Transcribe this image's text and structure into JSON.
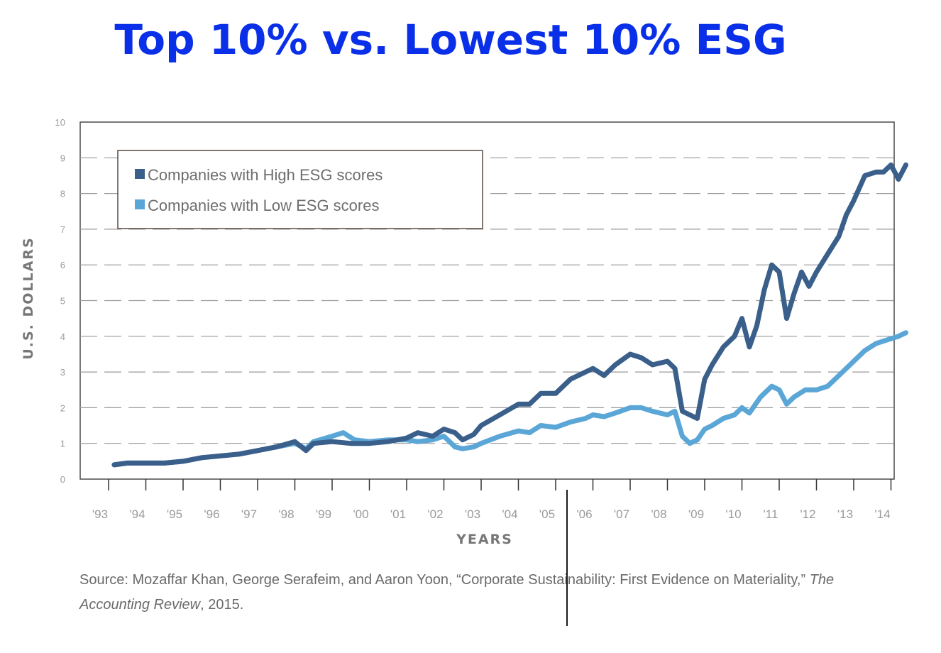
{
  "title": "Top 10% vs. Lowest 10% ESG",
  "source": {
    "prefix": "Source: Mozaffar Khan, George Serafeim, and Aaron Yoon, “Corporate Sustainability: First Evidence on Materiality,” ",
    "journal": "The Accounting Review",
    "suffix": ", 2015."
  },
  "colors": {
    "high": "#3a5f8a",
    "low": "#5aa6d6",
    "title": "#0a2fe8"
  },
  "chart_data": {
    "type": "line",
    "title": "",
    "xlabel": "YEARS",
    "ylabel": "U.S. DOLLARS",
    "xlim": [
      1993,
      2014.45
    ],
    "ylim": [
      0,
      10
    ],
    "yticks": [
      "0",
      "1",
      "2",
      "3",
      "4",
      "5",
      "6",
      "7",
      "8",
      "9",
      "10"
    ],
    "xticks": [
      "'93",
      "'94",
      "'95",
      "'96",
      "'97",
      "'98",
      "'99",
      "'00",
      "'01",
      "'02",
      "'03",
      "'04",
      "'05",
      "'06",
      "'07",
      "'08",
      "'09",
      "'10",
      "'11",
      "'12",
      "'13",
      "'14"
    ],
    "grid": "dashed horizontal",
    "legend_position": "top-left",
    "series": [
      {
        "name": "Companies with High ESG scores",
        "x": [
          1993.15,
          1993.5,
          1994.0,
          1994.5,
          1995.0,
          1995.5,
          1996.0,
          1996.5,
          1997.0,
          1997.5,
          1998.0,
          1998.3,
          1998.5,
          1999.0,
          1999.5,
          2000.0,
          2000.5,
          2001.0,
          2001.3,
          2001.7,
          2002.0,
          2002.3,
          2002.5,
          2002.8,
          2003.0,
          2003.5,
          2004.0,
          2004.3,
          2004.6,
          2005.0,
          2005.4,
          2005.8,
          2006.0,
          2006.3,
          2006.6,
          2007.0,
          2007.3,
          2007.6,
          2008.0,
          2008.2,
          2008.4,
          2008.6,
          2008.8,
          2009.0,
          2009.2,
          2009.5,
          2009.8,
          2010.0,
          2010.2,
          2010.4,
          2010.6,
          2010.8,
          2011.0,
          2011.2,
          2011.4,
          2011.6,
          2011.8,
          2012.0,
          2012.3,
          2012.6,
          2012.8,
          2013.0,
          2013.3,
          2013.6,
          2013.8,
          2014.0,
          2014.2,
          2014.4
        ],
        "values": [
          0.4,
          0.45,
          0.45,
          0.45,
          0.5,
          0.6,
          0.65,
          0.7,
          0.8,
          0.9,
          1.05,
          0.8,
          1.0,
          1.05,
          1.0,
          1.0,
          1.05,
          1.15,
          1.3,
          1.2,
          1.4,
          1.3,
          1.1,
          1.25,
          1.5,
          1.8,
          2.1,
          2.1,
          2.4,
          2.4,
          2.8,
          3.0,
          3.1,
          2.9,
          3.2,
          3.5,
          3.4,
          3.2,
          3.3,
          3.1,
          1.9,
          1.8,
          1.7,
          2.8,
          3.2,
          3.7,
          4.0,
          4.5,
          3.7,
          4.3,
          5.3,
          6.0,
          5.8,
          4.5,
          5.2,
          5.8,
          5.4,
          5.8,
          6.3,
          6.8,
          7.4,
          7.8,
          8.5,
          8.6,
          8.6,
          8.8,
          8.4,
          8.8
        ]
      },
      {
        "name": "Companies with Low ESG scores",
        "x": [
          1993.15,
          1993.5,
          1994.0,
          1994.5,
          1995.0,
          1995.5,
          1996.0,
          1996.5,
          1997.0,
          1997.5,
          1998.0,
          1998.3,
          1998.5,
          1999.0,
          1999.3,
          1999.6,
          2000.0,
          2000.5,
          2001.0,
          2001.3,
          2001.7,
          2002.0,
          2002.3,
          2002.5,
          2002.8,
          2003.0,
          2003.5,
          2004.0,
          2004.3,
          2004.6,
          2005.0,
          2005.4,
          2005.8,
          2006.0,
          2006.3,
          2006.6,
          2007.0,
          2007.3,
          2007.6,
          2008.0,
          2008.2,
          2008.4,
          2008.6,
          2008.8,
          2009.0,
          2009.2,
          2009.5,
          2009.8,
          2010.0,
          2010.2,
          2010.5,
          2010.8,
          2011.0,
          2011.2,
          2011.4,
          2011.7,
          2012.0,
          2012.3,
          2012.6,
          2013.0,
          2013.3,
          2013.6,
          2013.9,
          2014.2,
          2014.4
        ],
        "values": [
          0.4,
          0.45,
          0.45,
          0.45,
          0.5,
          0.6,
          0.65,
          0.7,
          0.8,
          0.9,
          1.0,
          0.85,
          1.05,
          1.2,
          1.3,
          1.1,
          1.05,
          1.1,
          1.1,
          1.05,
          1.1,
          1.2,
          0.9,
          0.85,
          0.9,
          1.0,
          1.2,
          1.35,
          1.3,
          1.5,
          1.45,
          1.6,
          1.7,
          1.8,
          1.75,
          1.85,
          2.0,
          2.0,
          1.9,
          1.8,
          1.9,
          1.2,
          1.0,
          1.1,
          1.4,
          1.5,
          1.7,
          1.8,
          2.0,
          1.85,
          2.3,
          2.6,
          2.5,
          2.1,
          2.3,
          2.5,
          2.5,
          2.6,
          2.9,
          3.3,
          3.6,
          3.8,
          3.9,
          4.0,
          4.1
        ]
      }
    ]
  }
}
